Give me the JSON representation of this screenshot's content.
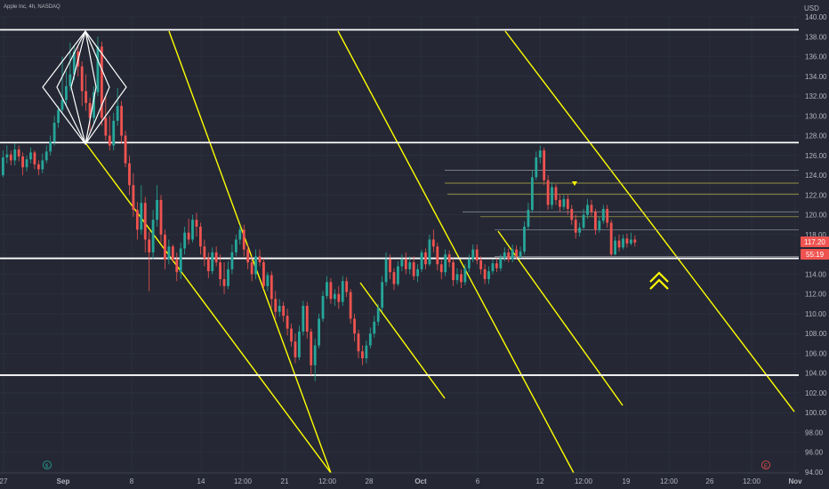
{
  "chart_data": {
    "type": "candlestick",
    "title": "Apple Inc, 4h, NASDAQ",
    "currency": "USD",
    "x_tick_labels": [
      "27",
      "Sep",
      "8",
      "14",
      "12:00",
      "21",
      "12:00",
      "28",
      "Oct",
      "6",
      "12",
      "12:00",
      "19",
      "12:00",
      "26",
      "12:00",
      "Nov"
    ],
    "y_tick_labels": [
      "140.00",
      "138.00",
      "136.00",
      "134.00",
      "132.00",
      "130.00",
      "128.00",
      "126.00",
      "124.00",
      "122.00",
      "120.00",
      "118.00",
      "116.00",
      "114.00",
      "112.00",
      "110.00",
      "108.00",
      "106.00",
      "104.00",
      "102.00",
      "100.00",
      "98.00",
      "96.00",
      "94.00"
    ],
    "ylim": [
      93.7,
      141.2
    ],
    "current_price_label": "117.20",
    "countdown_label": "55:19",
    "colors": {
      "background": "#252834",
      "up": "#26a69a",
      "down": "#ef5350",
      "horizontal_lines": "#ffffff",
      "channel_lines": "#ffff00",
      "grid": "#2f3240",
      "price_badge": "#ef5350"
    },
    "horizontal_levels": [
      138.7,
      127.3,
      115.6,
      103.8
    ],
    "fib_levels": [
      124.5,
      123.2,
      122.1,
      120.3,
      119.8,
      118.5,
      115.8
    ],
    "candles": [
      [
        124.0,
        125.8,
        126.5,
        123.8
      ],
      [
        125.8,
        126.1,
        127.0,
        125.2
      ],
      [
        126.1,
        125.5,
        126.5,
        125.0
      ],
      [
        125.5,
        126.6,
        127.2,
        125.0
      ],
      [
        126.6,
        125.9,
        127.0,
        125.4
      ],
      [
        125.9,
        124.8,
        126.3,
        124.0
      ],
      [
        124.8,
        125.6,
        126.0,
        124.4
      ],
      [
        125.6,
        126.3,
        126.8,
        125.2
      ],
      [
        126.3,
        125.1,
        126.5,
        124.6
      ],
      [
        125.1,
        124.6,
        125.5,
        124.0
      ],
      [
        124.6,
        125.5,
        126.2,
        124.2
      ],
      [
        125.5,
        126.4,
        127.0,
        125.2
      ],
      [
        126.4,
        127.4,
        128.0,
        126.0
      ],
      [
        127.4,
        129.3,
        130.0,
        127.0
      ],
      [
        129.3,
        130.6,
        131.0,
        128.8
      ],
      [
        130.6,
        131.6,
        136.0,
        130.2
      ],
      [
        131.6,
        133.0,
        134.5,
        131.0
      ],
      [
        133.0,
        134.2,
        137.4,
        132.5
      ],
      [
        134.2,
        136.5,
        137.1,
        133.6
      ],
      [
        136.5,
        135.0,
        137.0,
        134.0
      ],
      [
        135.0,
        132.5,
        135.5,
        131.0
      ],
      [
        132.5,
        131.3,
        134.2,
        130.5
      ],
      [
        131.3,
        129.8,
        131.8,
        128.5
      ],
      [
        129.8,
        132.4,
        133.0,
        129.2
      ],
      [
        132.4,
        137.0,
        138.0,
        132.0
      ],
      [
        137.0,
        129.8,
        137.5,
        129.0
      ],
      [
        129.8,
        128.0,
        132.0,
        127.5
      ],
      [
        128.0,
        127.0,
        130.0,
        126.5
      ],
      [
        127.0,
        129.5,
        130.3,
        126.5
      ],
      [
        129.5,
        131.0,
        132.8,
        129.0
      ],
      [
        131.0,
        128.0,
        131.5,
        127.2
      ],
      [
        128.0,
        125.2,
        128.5,
        124.8
      ],
      [
        125.2,
        123.0,
        126.0,
        122.0
      ],
      [
        123.0,
        120.5,
        124.2,
        119.8
      ],
      [
        120.5,
        118.5,
        121.3,
        117.5
      ],
      [
        118.5,
        121.2,
        123.0,
        118.0
      ],
      [
        121.2,
        117.5,
        121.8,
        116.2
      ],
      [
        117.5,
        116.2,
        118.3,
        112.3
      ],
      [
        116.2,
        119.5,
        120.5,
        115.5
      ],
      [
        119.5,
        121.5,
        123.0,
        118.8
      ],
      [
        121.5,
        118.0,
        122.0,
        117.2
      ],
      [
        118.0,
        115.5,
        118.5,
        114.5
      ],
      [
        115.5,
        116.8,
        117.5,
        115.0
      ],
      [
        116.8,
        115.5,
        117.0,
        115.2
      ],
      [
        115.5,
        114.2,
        116.2,
        113.3
      ],
      [
        114.2,
        116.6,
        117.2,
        113.5
      ],
      [
        116.6,
        118.2,
        118.8,
        116.0
      ],
      [
        118.2,
        117.5,
        119.6,
        117.0
      ],
      [
        117.5,
        119.5,
        120.0,
        117.2
      ],
      [
        119.5,
        118.8,
        120.2,
        117.8
      ],
      [
        118.8,
        116.8,
        119.2,
        116.0
      ],
      [
        116.8,
        115.6,
        117.5,
        114.8
      ],
      [
        115.6,
        114.3,
        116.2,
        113.6
      ],
      [
        114.3,
        116.2,
        116.7,
        114.0
      ],
      [
        116.2,
        115.2,
        116.8,
        114.8
      ],
      [
        115.2,
        113.5,
        116.0,
        112.8
      ],
      [
        113.5,
        112.8,
        115.2,
        112.0
      ],
      [
        112.8,
        114.5,
        115.3,
        112.5
      ],
      [
        114.5,
        116.2,
        117.0,
        114.0
      ],
      [
        116.2,
        117.5,
        118.0,
        115.8
      ],
      [
        117.5,
        118.5,
        118.9,
        117.0
      ],
      [
        118.5,
        116.5,
        119.0,
        115.8
      ],
      [
        116.5,
        115.2,
        117.0,
        114.5
      ],
      [
        115.2,
        114.0,
        115.8,
        113.3
      ],
      [
        114.0,
        115.8,
        116.5,
        113.5
      ],
      [
        115.8,
        115.2,
        116.5,
        114.8
      ],
      [
        115.2,
        112.8,
        115.6,
        112.5
      ],
      [
        112.8,
        113.9,
        114.2,
        112.3
      ],
      [
        113.9,
        111.5,
        114.3,
        110.6
      ],
      [
        111.5,
        110.2,
        112.3,
        109.5
      ],
      [
        110.2,
        110.8,
        111.5,
        109.7
      ],
      [
        110.8,
        109.8,
        111.2,
        109.2
      ],
      [
        109.8,
        108.5,
        110.5,
        107.8
      ],
      [
        108.5,
        107.2,
        109.0,
        106.7
      ],
      [
        107.2,
        105.6,
        108.0,
        105.0
      ],
      [
        105.6,
        108.2,
        108.8,
        105.3
      ],
      [
        108.2,
        110.8,
        111.3,
        107.8
      ],
      [
        110.8,
        108.2,
        111.2,
        107.5
      ],
      [
        108.2,
        104.8,
        108.5,
        103.8
      ],
      [
        104.8,
        106.8,
        107.5,
        103.2
      ],
      [
        106.8,
        109.5,
        110.0,
        106.5
      ],
      [
        109.5,
        111.8,
        112.3,
        109.2
      ],
      [
        111.8,
        113.2,
        113.8,
        111.5
      ],
      [
        113.2,
        111.5,
        113.6,
        111.0
      ],
      [
        111.5,
        112.0,
        112.5,
        110.8
      ],
      [
        112.0,
        111.2,
        112.8,
        110.5
      ],
      [
        111.2,
        113.3,
        113.8,
        110.8
      ],
      [
        113.3,
        112.2,
        113.7,
        111.7
      ],
      [
        112.2,
        109.5,
        112.5,
        109.0
      ],
      [
        109.5,
        108.0,
        110.0,
        107.2
      ],
      [
        108.0,
        106.2,
        108.4,
        105.5
      ],
      [
        106.2,
        105.5,
        106.8,
        104.8
      ],
      [
        105.5,
        106.8,
        107.3,
        105.0
      ],
      [
        106.8,
        108.0,
        108.6,
        106.5
      ],
      [
        108.0,
        109.2,
        109.8,
        107.6
      ],
      [
        109.2,
        110.6,
        111.0,
        108.8
      ],
      [
        110.6,
        113.2,
        113.8,
        110.2
      ],
      [
        113.2,
        115.5,
        116.2,
        112.8
      ],
      [
        115.5,
        114.2,
        116.0,
        113.5
      ],
      [
        114.2,
        113.0,
        114.6,
        112.4
      ],
      [
        113.0,
        114.8,
        115.3,
        112.8
      ],
      [
        114.8,
        115.5,
        116.0,
        114.3
      ],
      [
        115.5,
        114.5,
        116.2,
        114.0
      ],
      [
        114.5,
        115.2,
        115.8,
        114.0
      ],
      [
        115.2,
        113.8,
        115.8,
        113.4
      ],
      [
        113.8,
        114.5,
        115.0,
        113.2
      ],
      [
        114.5,
        116.2,
        116.5,
        114.2
      ],
      [
        116.2,
        115.0,
        116.6,
        114.5
      ],
      [
        115.0,
        117.5,
        118.0,
        114.8
      ],
      [
        117.5,
        116.8,
        118.5,
        116.2
      ],
      [
        116.8,
        115.0,
        117.2,
        114.4
      ],
      [
        115.0,
        114.2,
        115.5,
        113.5
      ],
      [
        114.2,
        116.0,
        116.5,
        113.8
      ],
      [
        116.0,
        115.2,
        116.4,
        114.7
      ],
      [
        115.2,
        113.4,
        115.6,
        112.8
      ],
      [
        113.4,
        114.0,
        114.6,
        113.0
      ],
      [
        114.0,
        113.2,
        114.5,
        112.6
      ],
      [
        113.2,
        114.6,
        115.0,
        112.9
      ],
      [
        114.6,
        115.5,
        116.0,
        114.2
      ],
      [
        115.5,
        116.5,
        117.0,
        115.2
      ],
      [
        116.5,
        115.4,
        117.0,
        115.0
      ],
      [
        115.4,
        114.5,
        115.8,
        114.0
      ],
      [
        114.5,
        113.5,
        115.0,
        113.0
      ],
      [
        113.5,
        114.3,
        114.8,
        113.0
      ],
      [
        114.3,
        115.1,
        115.5,
        114.0
      ],
      [
        115.1,
        114.6,
        115.6,
        114.2
      ],
      [
        114.6,
        115.6,
        116.0,
        114.3
      ],
      [
        115.6,
        116.2,
        116.7,
        115.3
      ],
      [
        116.2,
        115.5,
        116.6,
        115.2
      ],
      [
        115.5,
        116.5,
        117.0,
        115.2
      ],
      [
        116.5,
        115.8,
        116.9,
        115.5
      ],
      [
        115.8,
        116.3,
        116.8,
        115.6
      ],
      [
        116.3,
        118.8,
        119.3,
        116.0
      ],
      [
        118.8,
        120.5,
        121.2,
        118.5
      ],
      [
        120.5,
        123.8,
        124.5,
        120.2
      ],
      [
        123.8,
        125.8,
        126.4,
        123.5
      ],
      [
        125.8,
        126.5,
        127.0,
        125.2
      ],
      [
        126.5,
        123.5,
        126.8,
        123.0
      ],
      [
        123.5,
        121.0,
        124.0,
        120.5
      ],
      [
        121.0,
        122.8,
        123.3,
        120.6
      ],
      [
        122.8,
        121.5,
        123.1,
        121.0
      ],
      [
        121.5,
        120.8,
        122.0,
        120.3
      ],
      [
        120.8,
        121.6,
        122.0,
        120.5
      ],
      [
        121.6,
        120.6,
        122.0,
        120.0
      ],
      [
        120.6,
        119.5,
        121.0,
        119.0
      ],
      [
        119.5,
        118.2,
        120.0,
        117.6
      ],
      [
        118.2,
        118.7,
        119.2,
        117.8
      ],
      [
        118.7,
        120.0,
        120.6,
        118.5
      ],
      [
        120.0,
        121.0,
        121.6,
        119.6
      ],
      [
        121.0,
        120.3,
        121.5,
        119.9
      ],
      [
        120.3,
        118.5,
        120.6,
        118.0
      ],
      [
        118.5,
        119.4,
        119.8,
        118.2
      ],
      [
        119.4,
        120.6,
        121.0,
        119.1
      ],
      [
        120.6,
        119.2,
        121.0,
        118.7
      ],
      [
        119.2,
        116.0,
        119.5,
        115.8
      ],
      [
        116.0,
        117.4,
        117.8,
        115.9
      ],
      [
        117.4,
        116.7,
        118.0,
        116.3
      ],
      [
        116.7,
        117.6,
        118.0,
        116.5
      ],
      [
        117.6,
        117.1,
        118.1,
        116.7
      ],
      [
        117.1,
        117.5,
        118.2,
        116.9
      ],
      [
        117.5,
        117.2,
        117.9,
        116.8
      ]
    ]
  }
}
